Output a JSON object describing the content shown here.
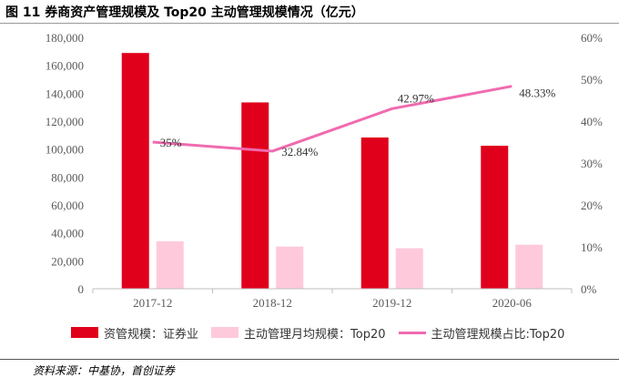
{
  "header": {
    "title": "图 11 券商资产管理规模及 Top20 主动管理规模情况（亿元）"
  },
  "source": {
    "text": "资料来源：中基协，首创证券"
  },
  "colors": {
    "bar_primary": "#e0001b",
    "bar_secondary": "#ffc9dc",
    "line": "#f06bb0"
  },
  "chart_data": {
    "type": "bar",
    "categories": [
      "2017-12",
      "2018-12",
      "2019-12",
      "2020-06"
    ],
    "y_left": {
      "ticks": [
        "0",
        "20,000",
        "40,000",
        "60,000",
        "80,000",
        "100,000",
        "120,000",
        "140,000",
        "160,000",
        "180,000"
      ],
      "ylim": [
        0,
        180000
      ]
    },
    "y_right": {
      "ticks": [
        "0%",
        "10%",
        "20%",
        "30%",
        "40%",
        "50%",
        "60%"
      ],
      "ylim": [
        0,
        60
      ]
    },
    "series": [
      {
        "name": "资管规模：证券业",
        "type": "bar",
        "axis": "left",
        "values": [
          168800,
          133400,
          108300,
          102400
        ]
      },
      {
        "name": "主动管理月均规模：Top20",
        "type": "bar",
        "axis": "left",
        "values": [
          34000,
          30200,
          29000,
          31500
        ]
      },
      {
        "name": "主动管理规模占比:Top20",
        "type": "line",
        "axis": "right",
        "values": [
          35.0,
          32.84,
          42.97,
          48.33
        ],
        "labels": [
          "35%",
          "32.84%",
          "42.97%",
          "48.33%"
        ]
      }
    ],
    "grid": false,
    "legend": "bottom"
  }
}
